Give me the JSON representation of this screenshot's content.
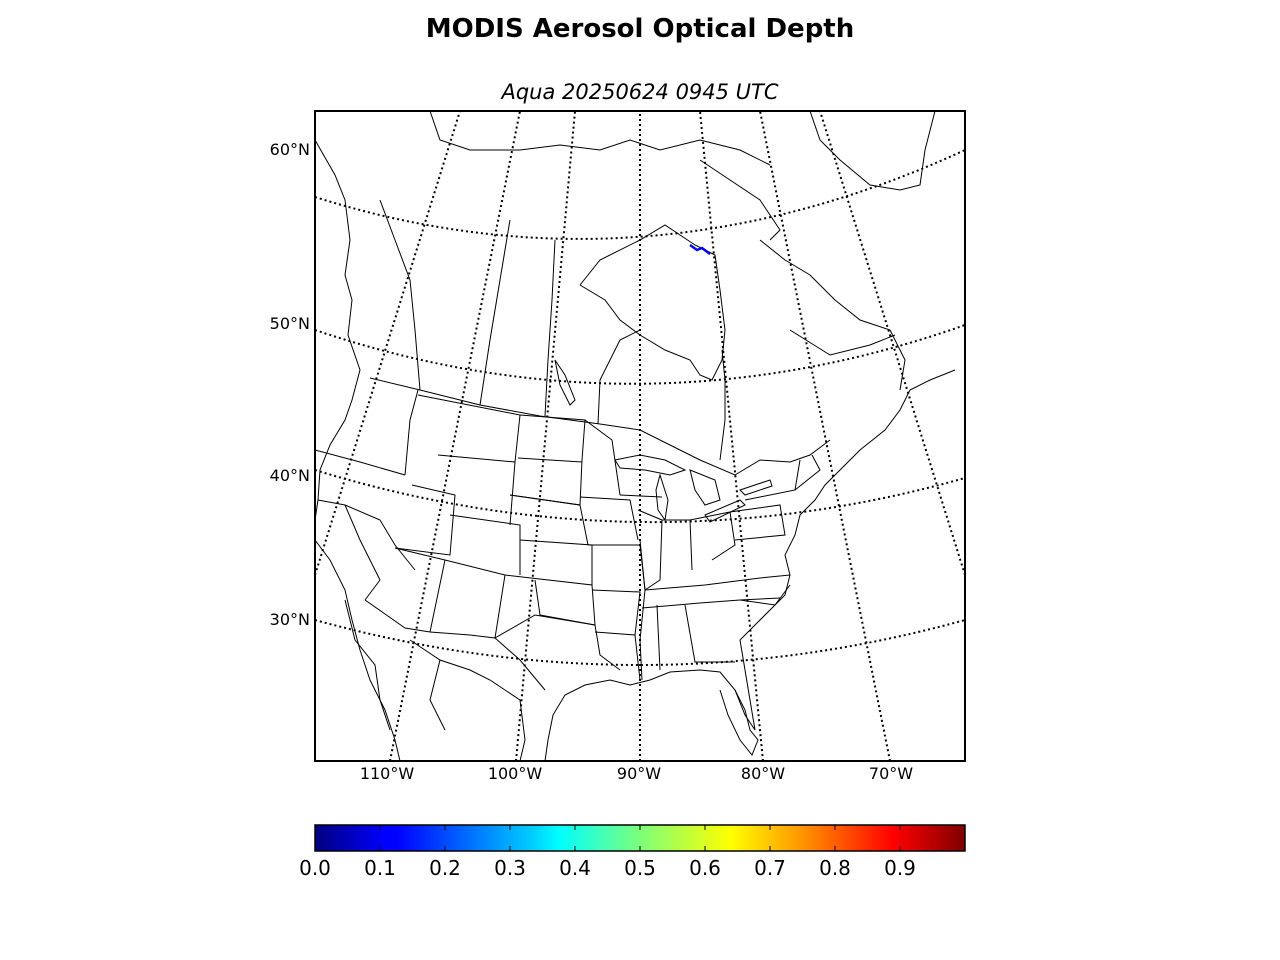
{
  "title": "MODIS Aerosol Optical Depth",
  "subtitle": "Aqua 20250624 0945 UTC",
  "map": {
    "projection": "lambert-conformal",
    "region": "North America",
    "lat_labels": [
      "60°N",
      "50°N",
      "40°N",
      "30°N"
    ],
    "lon_labels": [
      "110°W",
      "100°W",
      "90°W",
      "80°W",
      "70°W"
    ],
    "graticule": "dotted",
    "boundaries": [
      "coastlines",
      "countries",
      "states/provinces"
    ],
    "observations": [
      {
        "area": "Hudson Bay / Nunavut coast",
        "aod": 0.1,
        "color": "#0000ff"
      }
    ]
  },
  "colorbar": {
    "colormap": "jet",
    "min": 0.0,
    "max": 1.0,
    "ticks": [
      "0.0",
      "0.1",
      "0.2",
      "0.3",
      "0.4",
      "0.5",
      "0.6",
      "0.7",
      "0.8",
      "0.9"
    ]
  },
  "colors": {
    "frame": "#000000",
    "coast": "#000000",
    "background": "#ffffff"
  }
}
